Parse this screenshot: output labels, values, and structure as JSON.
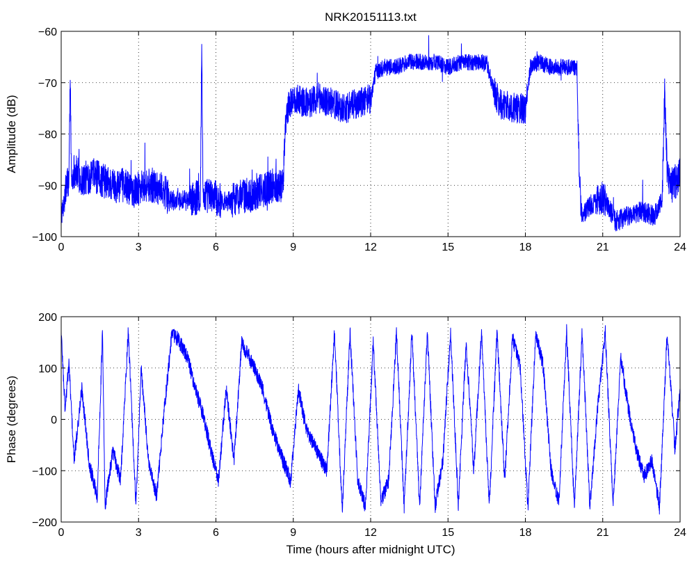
{
  "figure": {
    "title": "NRK20151113.txt",
    "line_color": "#0000ff"
  },
  "chart_data": [
    {
      "type": "line",
      "title": "NRK20151113.txt",
      "xlabel": "",
      "ylabel": "Amplitude (dB)",
      "xlim": [
        0,
        24
      ],
      "ylim": [
        -100,
        -60
      ],
      "xticks": [
        0,
        3,
        6,
        9,
        12,
        15,
        18,
        21,
        24
      ],
      "xticklabels": [
        "0",
        "3",
        "6",
        "9",
        "12",
        "15",
        "18",
        "21",
        "24"
      ],
      "yticks": [
        -100,
        -90,
        -80,
        -70,
        -60
      ],
      "yticklabels": [
        "−100",
        "−90",
        "−80",
        "−70",
        "−60"
      ],
      "grid": true,
      "series": [
        {
          "color": "#0000ff",
          "x": [
            0,
            0.1,
            0.2,
            0.3,
            0.35,
            0.4,
            0.45,
            0.5,
            0.8,
            1.2,
            1.6,
            2.0,
            2.4,
            2.8,
            3.2,
            3.6,
            4.0,
            4.2,
            4.5,
            5.0,
            5.4,
            5.45,
            5.5,
            5.8,
            6.2,
            6.6,
            7.0,
            7.4,
            7.8,
            8.2,
            8.6,
            8.7,
            8.8,
            9.0,
            9.5,
            10.0,
            10.5,
            11.0,
            11.5,
            12.0,
            12.2,
            12.5,
            13.0,
            13.5,
            14.0,
            14.5,
            15.0,
            15.5,
            16.0,
            16.5,
            16.8,
            17.0,
            17.5,
            18.0,
            18.2,
            18.5,
            19.0,
            19.5,
            20.0,
            20.1,
            20.2,
            20.5,
            21.0,
            21.5,
            22.0,
            22.5,
            23.0,
            23.3,
            23.4,
            23.5,
            23.7,
            24.0
          ],
          "y": [
            -96,
            -94,
            -90,
            -89,
            -68,
            -90,
            -88,
            -87,
            -89,
            -88,
            -89,
            -90,
            -90,
            -91,
            -90,
            -90,
            -91,
            -93,
            -93,
            -93,
            -92,
            -62,
            -92,
            -92,
            -93,
            -93,
            -92,
            -92,
            -91,
            -90,
            -90,
            -78,
            -75,
            -73,
            -74,
            -73,
            -74,
            -75,
            -74,
            -73,
            -68,
            -67,
            -67,
            -66,
            -66,
            -66,
            -67,
            -66,
            -66,
            -66,
            -72,
            -74,
            -75,
            -75,
            -67,
            -66,
            -67,
            -67,
            -67,
            -90,
            -96,
            -94,
            -92,
            -97,
            -96,
            -95,
            -96,
            -93,
            -72,
            -88,
            -90,
            -88
          ]
        }
      ]
    },
    {
      "type": "line",
      "title": "",
      "xlabel": "Time (hours after midnight UTC)",
      "ylabel": "Phase (degrees)",
      "xlim": [
        0,
        24
      ],
      "ylim": [
        -200,
        200
      ],
      "xticks": [
        0,
        3,
        6,
        9,
        12,
        15,
        18,
        21,
        24
      ],
      "xticklabels": [
        "0",
        "3",
        "6",
        "9",
        "12",
        "15",
        "18",
        "21",
        "24"
      ],
      "yticks": [
        -200,
        -100,
        0,
        100,
        200
      ],
      "yticklabels": [
        "−200",
        "−100",
        "0",
        "100",
        "200"
      ],
      "grid": true,
      "series": [
        {
          "color": "#0000ff",
          "x": [
            0,
            0.15,
            0.3,
            0.5,
            0.8,
            1.1,
            1.4,
            1.6,
            1.7,
            2.0,
            2.3,
            2.6,
            2.9,
            3.1,
            3.4,
            3.7,
            4.0,
            4.3,
            4.6,
            4.9,
            5.2,
            5.5,
            5.8,
            6.1,
            6.4,
            6.7,
            7.0,
            7.4,
            7.8,
            8.2,
            8.6,
            8.9,
            9.2,
            9.5,
            9.9,
            10.3,
            10.6,
            10.9,
            11.2,
            11.5,
            11.8,
            12.1,
            12.4,
            12.7,
            13.0,
            13.3,
            13.6,
            13.9,
            14.2,
            14.5,
            14.8,
            15.1,
            15.4,
            15.7,
            16.0,
            16.3,
            16.6,
            16.9,
            17.2,
            17.5,
            17.8,
            18.1,
            18.4,
            18.7,
            19.0,
            19.3,
            19.6,
            19.9,
            20.2,
            20.5,
            20.8,
            21.1,
            21.4,
            21.7,
            22.0,
            22.3,
            22.6,
            22.9,
            23.2,
            23.5,
            23.8,
            24.0
          ],
          "y": [
            170,
            20,
            110,
            -80,
            60,
            -90,
            -150,
            170,
            -170,
            -60,
            -120,
            170,
            -170,
            100,
            -90,
            -150,
            20,
            170,
            150,
            120,
            60,
            10,
            -60,
            -120,
            60,
            -80,
            150,
            110,
            60,
            -20,
            -80,
            -120,
            60,
            -20,
            -60,
            -100,
            170,
            -180,
            170,
            -120,
            -170,
            150,
            -160,
            -120,
            170,
            -170,
            170,
            -170,
            170,
            -170,
            -80,
            170,
            -170,
            150,
            -100,
            170,
            -170,
            170,
            -120,
            160,
            100,
            -170,
            170,
            100,
            -100,
            -160,
            170,
            -170,
            170,
            -170,
            20,
            170,
            -170,
            120,
            20,
            -60,
            -110,
            -80,
            -170,
            170,
            -60,
            60
          ]
        }
      ]
    }
  ]
}
